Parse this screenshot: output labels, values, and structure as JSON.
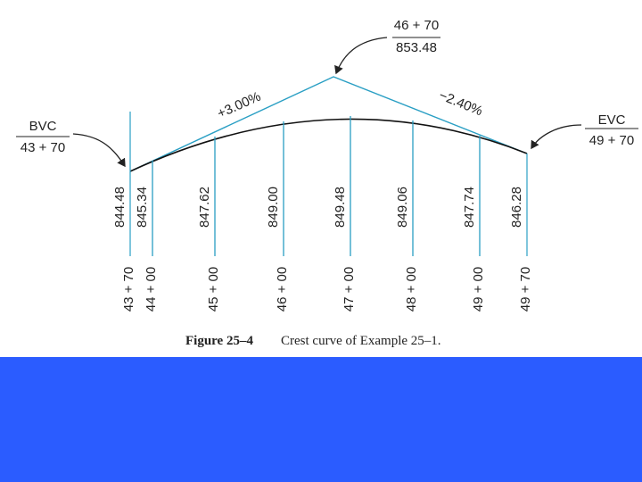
{
  "pvi": {
    "station": "46 + 70",
    "elevation": "853.48"
  },
  "bvc": {
    "label": "BVC",
    "station": "43 + 70"
  },
  "evc": {
    "label": "EVC",
    "station": "49 + 70"
  },
  "grades": {
    "entry": "+3.00%",
    "exit": "−2.40%"
  },
  "elevations": [
    "844.48",
    "845.34",
    "847.62",
    "849.00",
    "849.48",
    "849.06",
    "847.74",
    "846.28"
  ],
  "stations": [
    "43 + 70",
    "44 + 00",
    "45 + 00",
    "46 + 00",
    "47 + 00",
    "48 + 00",
    "49 + 00",
    "49 + 70"
  ],
  "caption": {
    "figure": "Figure 25–4",
    "text": "Crest curve of Example 25–1."
  }
}
